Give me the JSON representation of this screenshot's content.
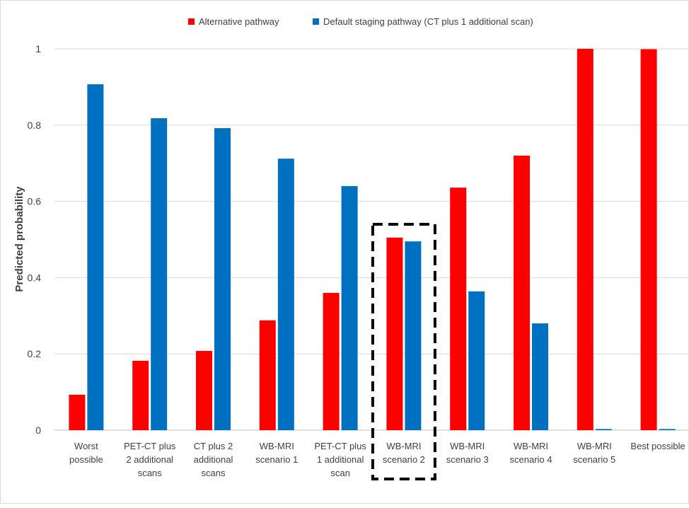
{
  "chart_data": {
    "type": "bar",
    "title": "",
    "xlabel": "",
    "ylabel": "Predicted probability",
    "ylim": [
      0,
      1
    ],
    "yticks": [
      "0",
      "0.2",
      "0.4",
      "0.6",
      "0.8",
      "1"
    ],
    "grid": true,
    "legend_position": "top",
    "categories": [
      [
        "Worst",
        "possible"
      ],
      [
        "PET-CT plus",
        "2 additional",
        "scans"
      ],
      [
        "CT plus 2",
        "additional",
        "scans"
      ],
      [
        "WB-MRI",
        "scenario 1"
      ],
      [
        "PET-CT plus",
        "1 additional",
        "scan"
      ],
      [
        "WB-MRI",
        "scenario 2"
      ],
      [
        "WB-MRI",
        "scenario 3"
      ],
      [
        "WB-MRI",
        "scenario 4"
      ],
      [
        "WB-MRI",
        "scenario 5"
      ],
      [
        "Best possible"
      ]
    ],
    "series": [
      {
        "name": "Alternative pathway",
        "color": "#ff0000",
        "values": [
          0.093,
          0.182,
          0.208,
          0.288,
          0.36,
          0.505,
          0.636,
          0.72,
          1.0,
          0.999
        ]
      },
      {
        "name": "Default staging pathway (CT plus 1 additional scan)",
        "color": "#0070c0",
        "values": [
          0.907,
          0.818,
          0.792,
          0.712,
          0.64,
          0.495,
          0.364,
          0.28,
          0.003,
          0.003
        ]
      }
    ],
    "highlight": {
      "category_index": 5,
      "style": "dashed box"
    }
  }
}
